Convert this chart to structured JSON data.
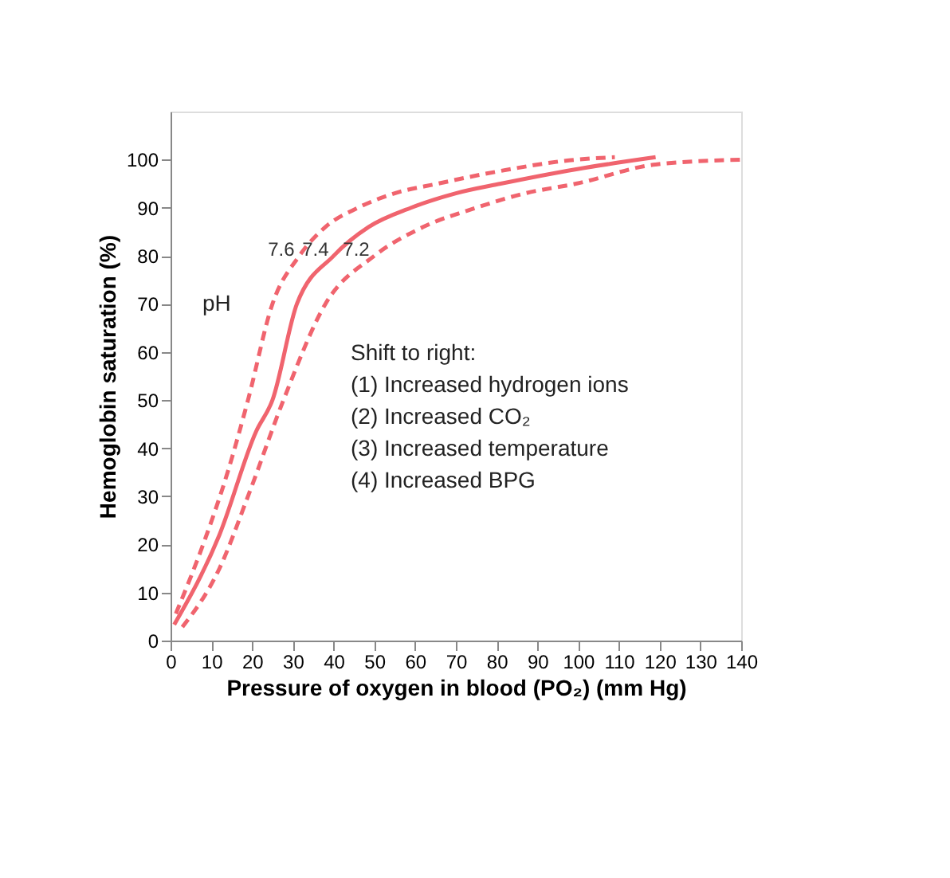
{
  "chart_data": {
    "type": "line",
    "xlabel": "Pressure of oxygen in blood (PO₂) (mm Hg)",
    "ylabel": "Hemoglobin saturation (%)",
    "xlim": [
      0,
      140
    ],
    "xticks": [
      0,
      10,
      20,
      30,
      40,
      50,
      60,
      70,
      80,
      90,
      100,
      110,
      120,
      130,
      140
    ],
    "ylim": [
      0,
      110
    ],
    "yticks": [
      0,
      10,
      20,
      30,
      40,
      50,
      60,
      70,
      80,
      90,
      100
    ],
    "grid": false,
    "marker": "none",
    "series": [
      {
        "color": "#f0646e",
        "line_style": "dashed",
        "x": [
          1.3,
          8,
          14,
          19,
          25,
          31.6,
          38,
          46,
          55,
          65.5,
          80,
          99.5,
          109
        ],
        "values": [
          5.6,
          20,
          35,
          50,
          70,
          80,
          86,
          90,
          93,
          95,
          97.5,
          100,
          100.5
        ]
      },
      {
        "color": "#f0646e",
        "line_style": "solid",
        "x": [
          0.9,
          12,
          21,
          25,
          31,
          40,
          48.6,
          59,
          70,
          81,
          99.5,
          119
        ],
        "values": [
          3.3,
          22,
          43.5,
          50,
          70,
          80,
          86,
          90,
          93,
          95,
          98,
          100.5
        ]
      },
      {
        "color": "#f0646e",
        "line_style": "dashed",
        "x": [
          2.9,
          12,
          19,
          27.7,
          38,
          50,
          62,
          75,
          87,
          99.5,
          119,
          140
        ],
        "values": [
          2.8,
          15,
          30,
          50,
          70,
          80,
          86,
          90,
          93,
          95,
          99,
          100
        ]
      }
    ],
    "annotations": [
      "pH",
      {
        "text": "7.6",
        "x": 31.6,
        "y": 80
      },
      {
        "text": "7.4",
        "x": 40,
        "y": 80
      },
      {
        "text": "7.2",
        "x": 50,
        "y": 80
      },
      "Shift to right:",
      "(1) Increased hydrogen ions",
      "(2) Increased CO₂",
      "(3) Increased temperature",
      "(4) Increased BPG"
    ]
  }
}
